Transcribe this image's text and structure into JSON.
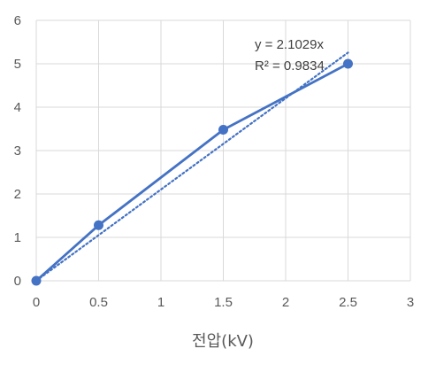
{
  "chart_data": {
    "type": "scatter",
    "title": "",
    "xlabel": "전압(kV)",
    "ylabel": "",
    "xlim": [
      0,
      3
    ],
    "ylim": [
      0,
      6
    ],
    "x_ticks": [
      "0",
      "0.5",
      "1",
      "1.5",
      "2",
      "2.5",
      "3"
    ],
    "y_ticks": [
      "0",
      "1",
      "2",
      "3",
      "4",
      "5",
      "6"
    ],
    "grid": true,
    "legend": "none",
    "series": [
      {
        "x": [
          0,
          0.5,
          1.5,
          2.5
        ],
        "y": [
          0,
          1.28,
          3.48,
          5.0
        ],
        "marker": "circle",
        "line": "solid",
        "color": "#4472C4"
      }
    ],
    "trendline": {
      "type": "linear",
      "slope": 2.1029,
      "x_range": [
        0,
        2.5
      ],
      "style": "dotted",
      "color": "#4472C4",
      "equation": "y = 2.1029x",
      "r_squared": "R² = 0.9834"
    }
  }
}
